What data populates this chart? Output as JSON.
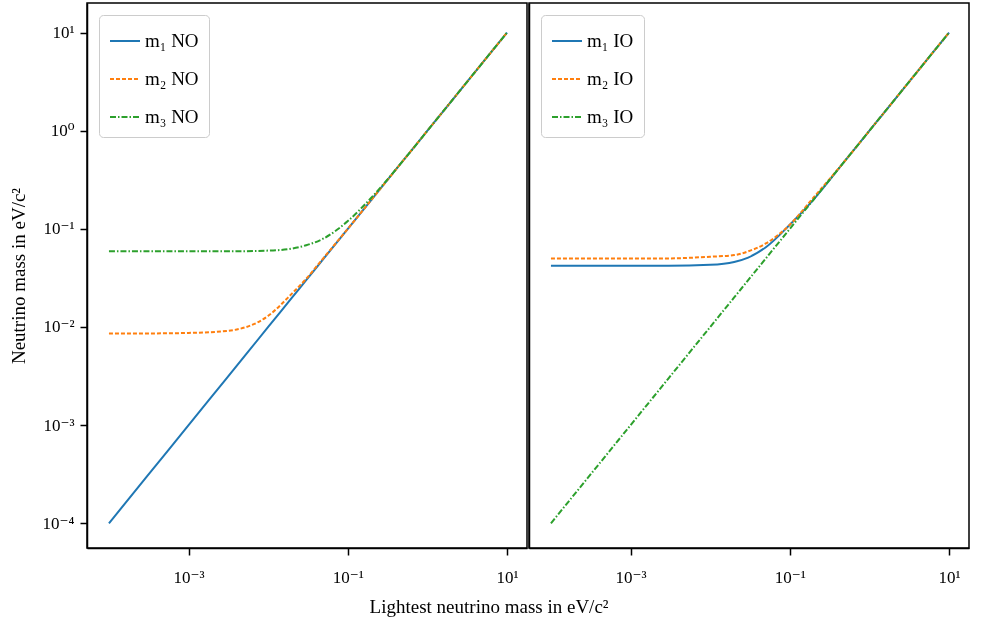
{
  "chart_data": [
    {
      "type": "line",
      "ylabel": "Neutrino mass in eV/c²",
      "xlabel": "Lightest neutrino mass in eV/c²",
      "log": "xy",
      "grid": false,
      "legend": "top left",
      "x": [
        0.0001,
        0.0003,
        0.001,
        0.003,
        0.01,
        0.02,
        0.03,
        0.05,
        0.1,
        0.2,
        0.5,
        1,
        3,
        10
      ],
      "xlim": [
        5.3e-05,
        17.8
      ],
      "ylim": [
        5.6e-05,
        20
      ],
      "xticks": [
        {
          "value": 0.001,
          "label": "10⁻³"
        },
        {
          "value": 0.1,
          "label": "10⁻¹"
        },
        {
          "value": 10,
          "label": "10¹"
        }
      ],
      "yticks": [
        {
          "value": 0.0001,
          "label": "10⁻⁴"
        },
        {
          "value": 0.001,
          "label": "10⁻³"
        },
        {
          "value": 0.01,
          "label": "10⁻²"
        },
        {
          "value": 0.1,
          "label": "10⁻¹"
        },
        {
          "value": 1,
          "label": "10⁰"
        },
        {
          "value": 10,
          "label": "10¹"
        }
      ],
      "series": [
        {
          "name": "m₁ NO",
          "color": "#1f77b4",
          "line_style": "solid",
          "values": [
            0.0001,
            0.0003,
            0.001,
            0.003,
            0.01,
            0.02,
            0.03,
            0.05,
            0.1,
            0.2,
            0.5,
            1,
            3,
            10
          ]
        },
        {
          "name": "m₂ NO",
          "color": "#ff7f0e",
          "line_style": "dashed",
          "values": [
            0.0086,
            0.0086,
            0.0087,
            0.0091,
            0.013,
            0.022,
            0.031,
            0.051,
            0.1,
            0.2,
            0.5,
            1,
            3,
            10
          ]
        },
        {
          "name": "m₃ NO",
          "color": "#2ca02c",
          "line_style": "dashdot",
          "values": [
            0.059,
            0.059,
            0.059,
            0.059,
            0.06,
            0.063,
            0.068,
            0.08,
            0.12,
            0.21,
            0.5,
            1,
            3,
            10
          ]
        }
      ]
    },
    {
      "type": "line",
      "log": "xy",
      "grid": false,
      "legend": "top left",
      "tick_labels": "x",
      "x": [
        0.0001,
        0.0003,
        0.001,
        0.003,
        0.01,
        0.02,
        0.03,
        0.05,
        0.1,
        0.2,
        0.5,
        1,
        3,
        10
      ],
      "xlim": [
        5.3e-05,
        17.8
      ],
      "ylim": [
        5.6e-05,
        20
      ],
      "xticks": [
        {
          "value": 0.001,
          "label": "10⁻³"
        },
        {
          "value": 0.1,
          "label": "10⁻¹"
        },
        {
          "value": 10,
          "label": "10¹"
        }
      ],
      "series": [
        {
          "name": "m₁ IO",
          "color": "#1f77b4",
          "line_style": "solid",
          "values": [
            0.042,
            0.042,
            0.042,
            0.042,
            0.043,
            0.046,
            0.051,
            0.065,
            0.11,
            0.2,
            0.5,
            1,
            3,
            10
          ]
        },
        {
          "name": "m₂ IO",
          "color": "#ff7f0e",
          "line_style": "dashed",
          "values": [
            0.05,
            0.05,
            0.05,
            0.05,
            0.052,
            0.054,
            0.059,
            0.071,
            0.11,
            0.21,
            0.5,
            1,
            3,
            10
          ]
        },
        {
          "name": "m₃ IO",
          "color": "#2ca02c",
          "line_style": "dashdot",
          "values": [
            0.0001,
            0.0003,
            0.001,
            0.003,
            0.01,
            0.02,
            0.03,
            0.05,
            0.1,
            0.2,
            0.5,
            1,
            3,
            10
          ]
        }
      ]
    }
  ]
}
